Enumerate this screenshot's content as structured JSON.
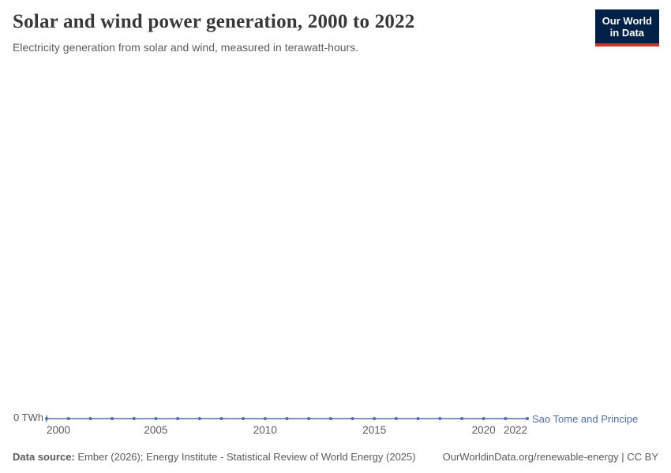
{
  "logo": {
    "line1": "Our World",
    "line2": "in Data",
    "bg": "#002147",
    "accent": "#d0352b"
  },
  "chart_data": {
    "type": "line",
    "title": "Solar and wind power generation, 2000 to 2022",
    "subtitle": "Electricity generation from solar and wind, measured in terawatt-hours.",
    "unit": "TWh",
    "x": [
      2000,
      2001,
      2002,
      2003,
      2004,
      2005,
      2006,
      2007,
      2008,
      2009,
      2010,
      2011,
      2012,
      2013,
      2014,
      2015,
      2016,
      2017,
      2018,
      2019,
      2020,
      2021,
      2022
    ],
    "series": [
      {
        "name": "Sao Tome and Principe",
        "color": "#4f6eb0",
        "values": [
          0,
          0,
          0,
          0,
          0,
          0,
          0,
          0,
          0,
          0,
          0,
          0,
          0,
          0,
          0,
          0,
          0,
          0,
          0,
          0,
          0,
          0,
          0
        ]
      }
    ],
    "xlim": [
      2000,
      2022
    ],
    "ylim": [
      0,
      0
    ],
    "grid": false,
    "legend_position": "line-end-label",
    "x_ticks": [
      {
        "year": 2000,
        "label": "2000"
      },
      {
        "year": 2005,
        "label": "2005"
      },
      {
        "year": 2010,
        "label": "2010"
      },
      {
        "year": 2015,
        "label": "2015"
      },
      {
        "year": 2020,
        "label": "2020"
      },
      {
        "year": 2022,
        "label": "2022"
      }
    ],
    "y_ticks": [
      {
        "value": 0,
        "label": "0 TWh"
      }
    ]
  },
  "footer": {
    "datasource_label": "Data source:",
    "datasource_text": "Ember (2026); Energy Institute - Statistical Review of World Energy (2025)",
    "credit": "OurWorldinData.org/renewable-energy | CC BY"
  }
}
